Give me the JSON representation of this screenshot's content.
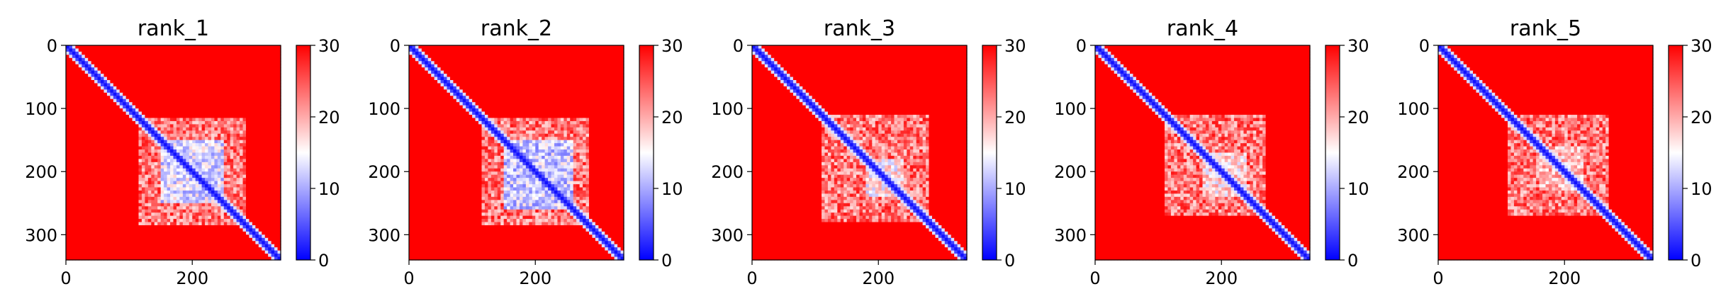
{
  "chart_data": [
    {
      "type": "heatmap",
      "title": "rank_1",
      "matrix_size": 340,
      "xticks": [
        0,
        200
      ],
      "xtick_labels": [
        "0",
        "200"
      ],
      "yticks": [
        0,
        100,
        200,
        300
      ],
      "ytick_labels": [
        "0",
        "100",
        "200",
        "300"
      ],
      "colorbar": {
        "min": 0,
        "max": 30,
        "ticks": [
          0,
          10,
          20,
          30
        ],
        "tick_labels": [
          "0",
          "10",
          "20",
          "30"
        ],
        "colormap": "bwr"
      },
      "structure": {
        "diagonal_low": true,
        "block_start": 115,
        "block_end": 285,
        "core_start": 150,
        "core_end": 250,
        "core_value": 8
      }
    },
    {
      "type": "heatmap",
      "title": "rank_2",
      "matrix_size": 340,
      "xticks": [
        0,
        200
      ],
      "xtick_labels": [
        "0",
        "200"
      ],
      "yticks": [
        0,
        100,
        200,
        300
      ],
      "ytick_labels": [
        "0",
        "100",
        "200",
        "300"
      ],
      "colorbar": {
        "min": 0,
        "max": 30,
        "ticks": [
          0,
          10,
          20,
          30
        ],
        "tick_labels": [
          "0",
          "10",
          "20",
          "30"
        ],
        "colormap": "bwr"
      },
      "structure": {
        "diagonal_low": true,
        "block_start": 115,
        "block_end": 285,
        "core_start": 150,
        "core_end": 260,
        "core_value": 7
      }
    },
    {
      "type": "heatmap",
      "title": "rank_3",
      "matrix_size": 340,
      "xticks": [
        0,
        200
      ],
      "xtick_labels": [
        "0",
        "200"
      ],
      "yticks": [
        0,
        100,
        200,
        300
      ],
      "ytick_labels": [
        "0",
        "100",
        "200",
        "300"
      ],
      "colorbar": {
        "min": 0,
        "max": 30,
        "ticks": [
          0,
          10,
          20,
          30
        ],
        "tick_labels": [
          "0",
          "10",
          "20",
          "30"
        ],
        "colormap": "bwr"
      },
      "structure": {
        "diagonal_low": true,
        "block_start": 110,
        "block_end": 280,
        "core_start": 180,
        "core_end": 240,
        "core_value": 11
      }
    },
    {
      "type": "heatmap",
      "title": "rank_4",
      "matrix_size": 340,
      "xticks": [
        0,
        200
      ],
      "xtick_labels": [
        "0",
        "200"
      ],
      "yticks": [
        0,
        100,
        200,
        300
      ],
      "ytick_labels": [
        "0",
        "100",
        "200",
        "300"
      ],
      "colorbar": {
        "min": 0,
        "max": 30,
        "ticks": [
          0,
          10,
          20,
          30
        ],
        "tick_labels": [
          "0",
          "10",
          "20",
          "30"
        ],
        "colormap": "bwr"
      },
      "structure": {
        "diagonal_low": true,
        "block_start": 110,
        "block_end": 270,
        "core_start": 170,
        "core_end": 240,
        "core_value": 12
      }
    },
    {
      "type": "heatmap",
      "title": "rank_5",
      "matrix_size": 340,
      "xticks": [
        0,
        200
      ],
      "xtick_labels": [
        "0",
        "200"
      ],
      "yticks": [
        0,
        100,
        200,
        300
      ],
      "ytick_labels": [
        "0",
        "100",
        "200",
        "300"
      ],
      "colorbar": {
        "min": 0,
        "max": 30,
        "ticks": [
          0,
          10,
          20,
          30
        ],
        "tick_labels": [
          "0",
          "10",
          "20",
          "30"
        ],
        "colormap": "bwr"
      },
      "structure": {
        "diagonal_low": true,
        "block_start": 110,
        "block_end": 270,
        "core_start": 160,
        "core_end": 230,
        "core_value": 14
      }
    }
  ]
}
